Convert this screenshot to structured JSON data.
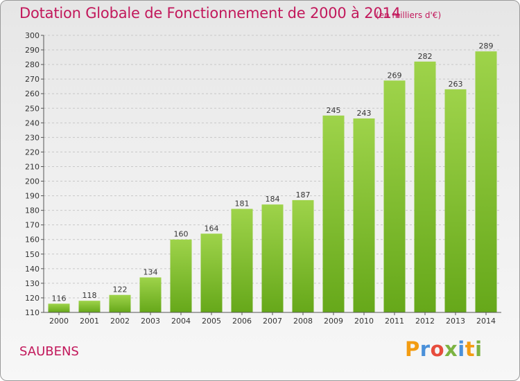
{
  "header": {
    "title": "Dotation Globale de Fonctionnement de 2000 à 2014",
    "subtitle": "(en milliers d'€)"
  },
  "footer": {
    "commune": "SAUBENS",
    "logo_letters": [
      "P",
      "r",
      "o",
      "x",
      "i",
      "t",
      "i"
    ],
    "logo_colors": [
      "#f39c12",
      "#4a90d9",
      "#e74c3c",
      "#7cb342",
      "#4a90d9",
      "#f39c12",
      "#7cb342"
    ]
  },
  "chart_data": {
    "type": "bar",
    "categories": [
      "2000",
      "2001",
      "2002",
      "2003",
      "2004",
      "2005",
      "2006",
      "2007",
      "2008",
      "2009",
      "2010",
      "2011",
      "2012",
      "2013",
      "2014"
    ],
    "values": [
      116,
      118,
      122,
      134,
      160,
      164,
      181,
      184,
      187,
      245,
      243,
      269,
      282,
      263,
      289
    ],
    "data_labels": [
      "116",
      "118",
      "122",
      "134",
      "160",
      "164",
      "181",
      "184",
      "187",
      "245",
      "243",
      "269",
      "282",
      "263",
      "289"
    ],
    "y_ticks": [
      "110",
      "120",
      "130",
      "140",
      "150",
      "160",
      "170",
      "180",
      "190",
      "200",
      "210",
      "220",
      "230",
      "240",
      "250",
      "260",
      "270",
      "280",
      "290",
      "300"
    ],
    "ylim": [
      110,
      300
    ],
    "grid": true,
    "bar_color": "#7cbf2a"
  }
}
